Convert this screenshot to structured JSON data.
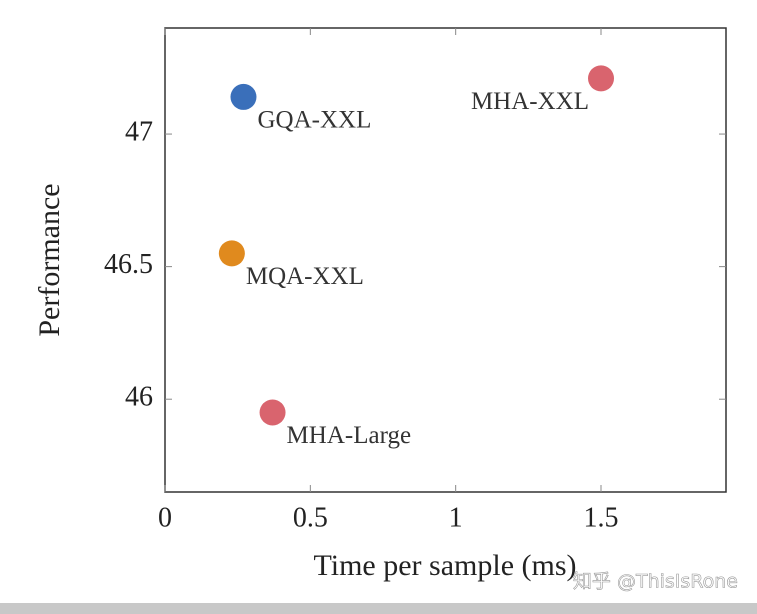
{
  "chart_data": {
    "type": "scatter",
    "x_label": "Time per sample (ms)",
    "y_label": "Performance",
    "xlim": [
      0,
      1.93
    ],
    "ylim": [
      45.65,
      47.4
    ],
    "xticks": [
      0,
      0.5,
      1,
      1.5
    ],
    "yticks": [
      46,
      46.5,
      47
    ],
    "series": [
      {
        "name": "GQA-XXL",
        "color": "#3a6fba",
        "x": [
          0.27
        ],
        "values": [
          47.14
        ]
      },
      {
        "name": "MHA-XXL",
        "color": "#d9646e",
        "x": [
          1.5
        ],
        "values": [
          47.21
        ]
      },
      {
        "name": "MQA-XXL",
        "color": "#e08a1e",
        "x": [
          0.23
        ],
        "values": [
          46.55
        ]
      },
      {
        "name": "MHA-Large",
        "color": "#d9646e",
        "x": [
          0.37
        ],
        "values": [
          45.95
        ]
      }
    ]
  },
  "watermark": "知乎 @ThisIsRone"
}
